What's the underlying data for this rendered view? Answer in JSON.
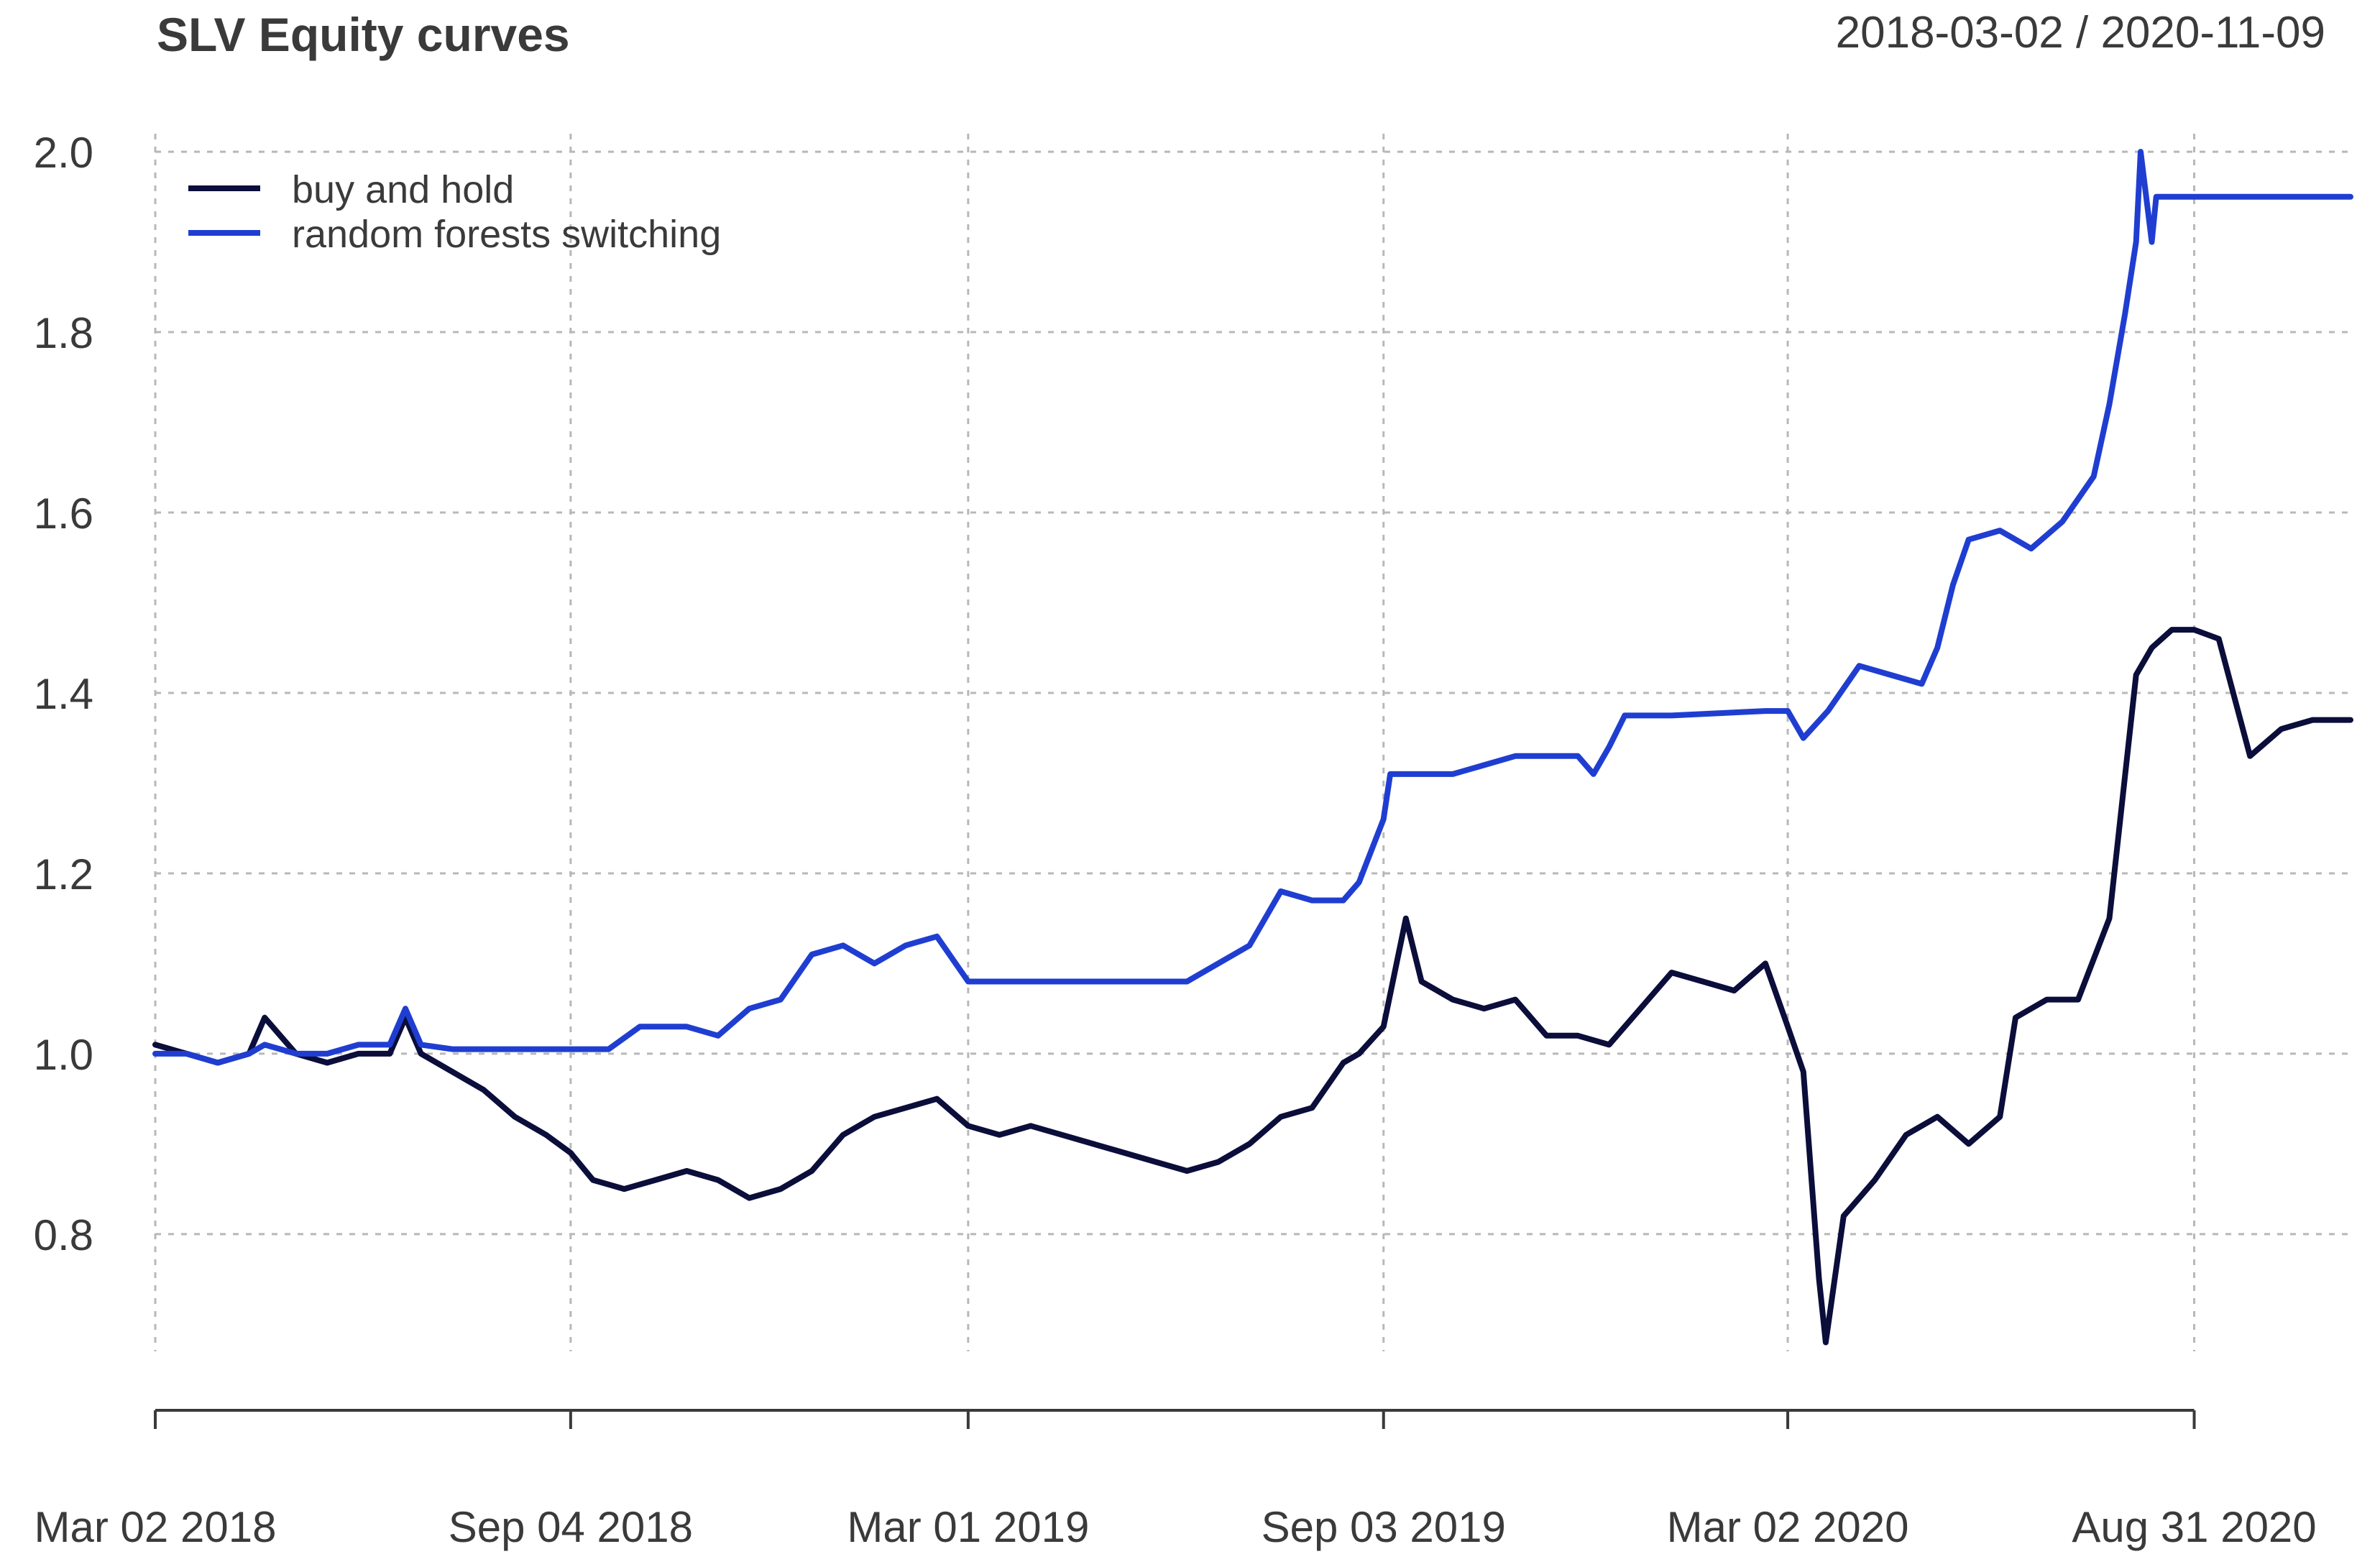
{
  "chart_data": {
    "type": "line",
    "title": "SLV Equity curves",
    "subtitle": "2018-03-02 / 2020-11-09",
    "xlabel": "",
    "ylabel": "",
    "ylim": [
      0.67,
      2.02
    ],
    "xlim": [
      "2018-03-02",
      "2020-11-09"
    ],
    "grid": true,
    "legend_position": "top-left",
    "y_ticks": [
      "0.8",
      "1.0",
      "1.2",
      "1.4",
      "1.6",
      "1.8",
      "2.0"
    ],
    "x_ticks": [
      {
        "date": "2018-03-02",
        "label": "Mar 02 2018"
      },
      {
        "date": "2018-09-04",
        "label": "Sep 04 2018"
      },
      {
        "date": "2019-03-01",
        "label": "Mar 01 2019"
      },
      {
        "date": "2019-09-03",
        "label": "Sep 03 2019"
      },
      {
        "date": "2020-03-02",
        "label": "Mar 02 2020"
      },
      {
        "date": "2020-08-31",
        "label": "Aug 31 2020"
      }
    ],
    "series": [
      {
        "name": "buy and hold",
        "color": "#0b0d3a",
        "points": [
          [
            "2018-03-02",
            1.01
          ],
          [
            "2018-03-16",
            1.0
          ],
          [
            "2018-03-30",
            0.99
          ],
          [
            "2018-04-13",
            1.0
          ],
          [
            "2018-04-20",
            1.04
          ],
          [
            "2018-05-04",
            1.0
          ],
          [
            "2018-05-18",
            0.99
          ],
          [
            "2018-06-01",
            1.0
          ],
          [
            "2018-06-15",
            1.0
          ],
          [
            "2018-06-22",
            1.04
          ],
          [
            "2018-06-29",
            1.0
          ],
          [
            "2018-07-13",
            0.98
          ],
          [
            "2018-07-27",
            0.96
          ],
          [
            "2018-08-10",
            0.93
          ],
          [
            "2018-08-24",
            0.91
          ],
          [
            "2018-09-04",
            0.89
          ],
          [
            "2018-09-14",
            0.86
          ],
          [
            "2018-09-28",
            0.85
          ],
          [
            "2018-10-12",
            0.86
          ],
          [
            "2018-10-26",
            0.87
          ],
          [
            "2018-11-09",
            0.86
          ],
          [
            "2018-11-23",
            0.84
          ],
          [
            "2018-12-07",
            0.85
          ],
          [
            "2018-12-21",
            0.87
          ],
          [
            "2019-01-04",
            0.91
          ],
          [
            "2019-01-18",
            0.93
          ],
          [
            "2019-02-01",
            0.94
          ],
          [
            "2019-02-15",
            0.95
          ],
          [
            "2019-03-01",
            0.92
          ],
          [
            "2019-03-15",
            0.91
          ],
          [
            "2019-03-29",
            0.92
          ],
          [
            "2019-04-12",
            0.91
          ],
          [
            "2019-04-26",
            0.9
          ],
          [
            "2019-05-10",
            0.89
          ],
          [
            "2019-05-24",
            0.88
          ],
          [
            "2019-06-07",
            0.87
          ],
          [
            "2019-06-21",
            0.88
          ],
          [
            "2019-07-05",
            0.9
          ],
          [
            "2019-07-19",
            0.93
          ],
          [
            "2019-08-02",
            0.94
          ],
          [
            "2019-08-16",
            0.99
          ],
          [
            "2019-08-23",
            1.0
          ],
          [
            "2019-09-03",
            1.03
          ],
          [
            "2019-09-13",
            1.15
          ],
          [
            "2019-09-20",
            1.08
          ],
          [
            "2019-10-04",
            1.06
          ],
          [
            "2019-10-18",
            1.05
          ],
          [
            "2019-11-01",
            1.06
          ],
          [
            "2019-11-15",
            1.02
          ],
          [
            "2019-11-29",
            1.02
          ],
          [
            "2019-12-13",
            1.01
          ],
          [
            "2019-12-27",
            1.05
          ],
          [
            "2020-01-10",
            1.09
          ],
          [
            "2020-01-24",
            1.08
          ],
          [
            "2020-02-07",
            1.07
          ],
          [
            "2020-02-21",
            1.1
          ],
          [
            "2020-03-02",
            1.03
          ],
          [
            "2020-03-09",
            0.98
          ],
          [
            "2020-03-16",
            0.75
          ],
          [
            "2020-03-19",
            0.68
          ],
          [
            "2020-03-27",
            0.82
          ],
          [
            "2020-04-10",
            0.86
          ],
          [
            "2020-04-24",
            0.91
          ],
          [
            "2020-05-08",
            0.93
          ],
          [
            "2020-05-22",
            0.9
          ],
          [
            "2020-06-05",
            0.93
          ],
          [
            "2020-06-12",
            1.04
          ],
          [
            "2020-06-26",
            1.06
          ],
          [
            "2020-07-10",
            1.06
          ],
          [
            "2020-07-24",
            1.15
          ],
          [
            "2020-08-05",
            1.42
          ],
          [
            "2020-08-12",
            1.45
          ],
          [
            "2020-08-21",
            1.47
          ],
          [
            "2020-08-31",
            1.47
          ],
          [
            "2020-09-11",
            1.46
          ],
          [
            "2020-09-25",
            1.33
          ],
          [
            "2020-10-09",
            1.36
          ],
          [
            "2020-10-23",
            1.37
          ],
          [
            "2020-11-09",
            1.37
          ]
        ]
      },
      {
        "name": "random forests switching",
        "color": "#1f3ed1",
        "points": [
          [
            "2018-03-02",
            1.0
          ],
          [
            "2018-03-16",
            1.0
          ],
          [
            "2018-03-30",
            0.99
          ],
          [
            "2018-04-13",
            1.0
          ],
          [
            "2018-04-20",
            1.01
          ],
          [
            "2018-05-04",
            1.0
          ],
          [
            "2018-05-18",
            1.0
          ],
          [
            "2018-06-01",
            1.01
          ],
          [
            "2018-06-15",
            1.01
          ],
          [
            "2018-06-22",
            1.05
          ],
          [
            "2018-06-29",
            1.01
          ],
          [
            "2018-07-13",
            1.005
          ],
          [
            "2018-09-04",
            1.005
          ],
          [
            "2018-09-21",
            1.005
          ],
          [
            "2018-10-05",
            1.03
          ],
          [
            "2018-10-26",
            1.03
          ],
          [
            "2018-11-09",
            1.02
          ],
          [
            "2018-11-23",
            1.05
          ],
          [
            "2018-12-07",
            1.06
          ],
          [
            "2018-12-21",
            1.11
          ],
          [
            "2019-01-04",
            1.12
          ],
          [
            "2019-01-18",
            1.1
          ],
          [
            "2019-02-01",
            1.12
          ],
          [
            "2019-02-15",
            1.13
          ],
          [
            "2019-03-01",
            1.08
          ],
          [
            "2019-03-08",
            1.08
          ],
          [
            "2019-06-07",
            1.08
          ],
          [
            "2019-06-21",
            1.1
          ],
          [
            "2019-07-05",
            1.12
          ],
          [
            "2019-07-19",
            1.18
          ],
          [
            "2019-08-02",
            1.17
          ],
          [
            "2019-08-16",
            1.17
          ],
          [
            "2019-08-23",
            1.19
          ],
          [
            "2019-09-03",
            1.26
          ],
          [
            "2019-09-06",
            1.31
          ],
          [
            "2019-09-20",
            1.31
          ],
          [
            "2019-10-04",
            1.31
          ],
          [
            "2019-10-18",
            1.32
          ],
          [
            "2019-11-01",
            1.33
          ],
          [
            "2019-11-15",
            1.33
          ],
          [
            "2019-11-29",
            1.33
          ],
          [
            "2019-12-06",
            1.31
          ],
          [
            "2019-12-13",
            1.34
          ],
          [
            "2019-12-20",
            1.375
          ],
          [
            "2020-01-10",
            1.375
          ],
          [
            "2020-02-21",
            1.38
          ],
          [
            "2020-03-02",
            1.38
          ],
          [
            "2020-03-09",
            1.35
          ],
          [
            "2020-03-20",
            1.38
          ],
          [
            "2020-04-03",
            1.43
          ],
          [
            "2020-04-17",
            1.42
          ],
          [
            "2020-05-01",
            1.41
          ],
          [
            "2020-05-08",
            1.45
          ],
          [
            "2020-05-15",
            1.52
          ],
          [
            "2020-05-22",
            1.57
          ],
          [
            "2020-06-05",
            1.58
          ],
          [
            "2020-06-19",
            1.56
          ],
          [
            "2020-07-03",
            1.59
          ],
          [
            "2020-07-17",
            1.64
          ],
          [
            "2020-07-24",
            1.72
          ],
          [
            "2020-07-31",
            1.82
          ],
          [
            "2020-08-05",
            1.9
          ],
          [
            "2020-08-07",
            2.0
          ],
          [
            "2020-08-12",
            1.9
          ],
          [
            "2020-08-14",
            1.95
          ],
          [
            "2020-11-09",
            1.95
          ]
        ]
      }
    ]
  }
}
